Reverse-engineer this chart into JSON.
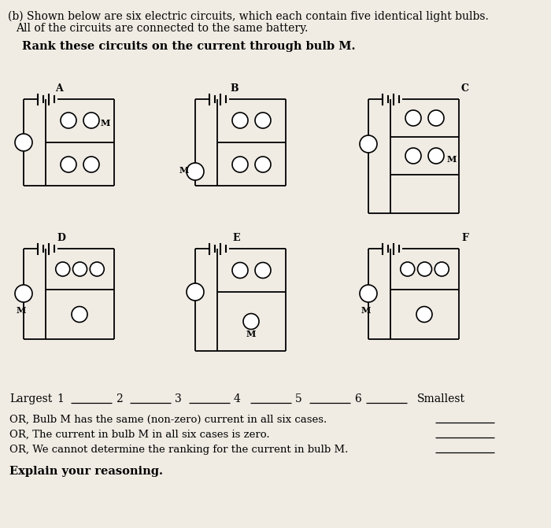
{
  "bg_color": "#f0ece4",
  "line1": "(b) Shown below are six electric circuits, which each contain five identical light bulbs.",
  "line2": "    All of the circuits are connected to the same battery.",
  "subtitle": "Rank these circuits on the current through bulb M.",
  "or_lines": [
    "OR, Bulb M has the same (non-zero) current in all six cases.",
    "OR, The current in bulb M in all six cases is zero.",
    "OR, We cannot determine the ranking for the current in bulb M."
  ],
  "explain": "Explain your reasoning.",
  "circuit_labels": [
    "A",
    "B",
    "C",
    "D",
    "E",
    "F"
  ]
}
